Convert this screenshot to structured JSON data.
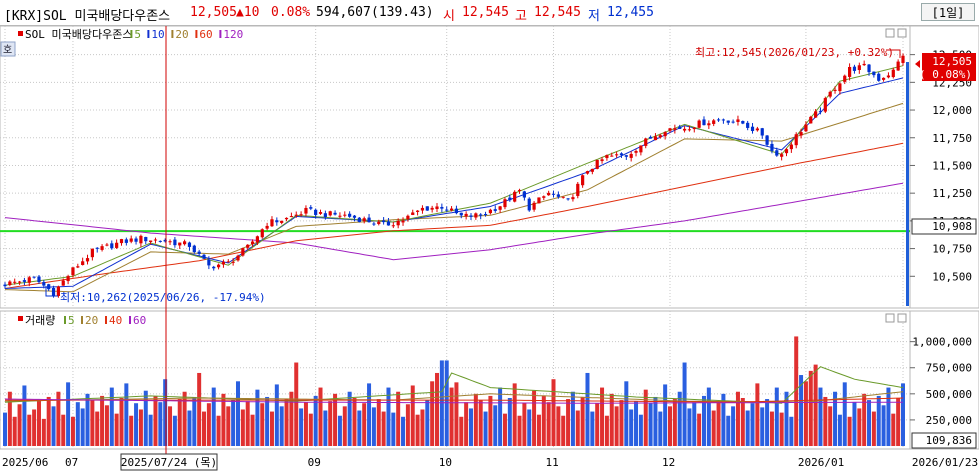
{
  "header": {
    "ticker": "[KRX]SOL 미국배당다우존스",
    "price": "12,505",
    "change": "▲10",
    "change_pct": "0.08%",
    "volume": "594,607",
    "volume_pct": "(139.43)",
    "open_label": "시",
    "open": "12,545",
    "high_label": "고",
    "high": "12,545",
    "low_label": "저",
    "low": "12,455",
    "period": "[1일]",
    "colors": {
      "up": "#e00000",
      "down": "#0030d0"
    }
  },
  "chart_data": [
    {
      "type": "candlestick",
      "title": "SOL 미국배당다우존스",
      "ma_legend": [
        {
          "name": "5",
          "color": "#6a9a2a"
        },
        {
          "name": "10",
          "color": "#1030d0"
        },
        {
          "name": "20",
          "color": "#a08030"
        },
        {
          "name": "60",
          "color": "#e03010"
        },
        {
          "name": "120",
          "color": "#a020c0"
        }
      ],
      "y_ticks": [
        10500,
        10750,
        11000,
        11250,
        11500,
        11750,
        12000,
        12250,
        12500
      ],
      "y_tick_labels": [
        "10,500",
        "10,750",
        "11,000",
        "11,250",
        "11,500",
        "11,750",
        "12,000",
        "12,250",
        "12,500"
      ],
      "ylim": [
        10250,
        12650
      ],
      "current_price_label": "12,505",
      "current_change_label": "( 0.08%)",
      "horizontal_line": {
        "value": 10908,
        "label": "10,908",
        "color": "#22dd22"
      },
      "high_annotation": "최고:12,545(2026/01/23, +0.32%)",
      "low_annotation": "최저:10,262(2025/06/26, -17.94%)",
      "side_marker": "호",
      "close_path": [
        [
          0,
          10430
        ],
        [
          6,
          10480
        ],
        [
          10,
          10350
        ],
        [
          14,
          10560
        ],
        [
          18,
          10720
        ],
        [
          24,
          10810
        ],
        [
          28,
          10840
        ],
        [
          33,
          10820
        ],
        [
          38,
          10780
        ],
        [
          42,
          10590
        ],
        [
          46,
          10620
        ],
        [
          50,
          10760
        ],
        [
          54,
          10980
        ],
        [
          58,
          11020
        ],
        [
          62,
          11090
        ],
        [
          66,
          11060
        ],
        [
          70,
          11050
        ],
        [
          74,
          11010
        ],
        [
          78,
          10960
        ],
        [
          82,
          11010
        ],
        [
          86,
          11110
        ],
        [
          90,
          11130
        ],
        [
          94,
          11040
        ],
        [
          98,
          11050
        ],
        [
          102,
          11140
        ],
        [
          106,
          11270
        ],
        [
          108,
          11120
        ],
        [
          112,
          11250
        ],
        [
          116,
          11170
        ],
        [
          120,
          11460
        ],
        [
          124,
          11580
        ],
        [
          128,
          11590
        ],
        [
          132,
          11720
        ],
        [
          136,
          11830
        ],
        [
          140,
          11840
        ],
        [
          144,
          11890
        ],
        [
          148,
          11920
        ],
        [
          152,
          11880
        ],
        [
          156,
          11780
        ],
        [
          158,
          11630
        ],
        [
          160,
          11600
        ],
        [
          164,
          11820
        ],
        [
          168,
          12010
        ],
        [
          170,
          12150
        ],
        [
          174,
          12370
        ],
        [
          177,
          12390
        ],
        [
          180,
          12280
        ],
        [
          183,
          12350
        ],
        [
          185,
          12505
        ]
      ],
      "ma_series": [
        {
          "name": "120",
          "color": "#a020c0",
          "points": [
            [
              0,
              11030
            ],
            [
              30,
              10890
            ],
            [
              60,
              10800
            ],
            [
              80,
              10650
            ],
            [
              100,
              10740
            ],
            [
              120,
              10880
            ],
            [
              140,
              11000
            ],
            [
              160,
              11150
            ],
            [
              185,
              11340
            ]
          ]
        },
        {
          "name": "60",
          "color": "#e03010",
          "points": [
            [
              0,
              10390
            ],
            [
              20,
              10520
            ],
            [
              40,
              10640
            ],
            [
              60,
              10820
            ],
            [
              80,
              10910
            ],
            [
              100,
              10960
            ],
            [
              120,
              11130
            ],
            [
              140,
              11310
            ],
            [
              160,
              11490
            ],
            [
              185,
              11700
            ]
          ]
        },
        {
          "name": "20",
          "color": "#a08030",
          "points": [
            [
              0,
              10380
            ],
            [
              14,
              10360
            ],
            [
              30,
              10720
            ],
            [
              46,
              10700
            ],
            [
              60,
              10950
            ],
            [
              80,
              11010
            ],
            [
              100,
              11050
            ],
            [
              120,
              11280
            ],
            [
              140,
              11740
            ],
            [
              160,
              11720
            ],
            [
              185,
              12060
            ]
          ]
        },
        {
          "name": "10",
          "color": "#1030d0",
          "points": [
            [
              0,
              10390
            ],
            [
              14,
              10410
            ],
            [
              30,
              10790
            ],
            [
              46,
              10620
            ],
            [
              60,
              11040
            ],
            [
              80,
              10990
            ],
            [
              100,
              11130
            ],
            [
              120,
              11440
            ],
            [
              140,
              11860
            ],
            [
              160,
              11640
            ],
            [
              172,
              12150
            ],
            [
              185,
              12290
            ]
          ]
        },
        {
          "name": "5",
          "color": "#6a9a2a",
          "points": [
            [
              0,
              10420
            ],
            [
              14,
              10500
            ],
            [
              30,
              10800
            ],
            [
              46,
              10600
            ],
            [
              60,
              11050
            ],
            [
              80,
              10990
            ],
            [
              100,
              11160
            ],
            [
              120,
              11520
            ],
            [
              140,
              11870
            ],
            [
              160,
              11600
            ],
            [
              172,
              12260
            ],
            [
              185,
              12400
            ]
          ]
        }
      ]
    },
    {
      "type": "bar",
      "title": "거래량",
      "ma_legend": [
        {
          "name": "5",
          "color": "#6a9a2a"
        },
        {
          "name": "20",
          "color": "#a08030"
        },
        {
          "name": "40",
          "color": "#e03010"
        },
        {
          "name": "60",
          "color": "#a020c0"
        }
      ],
      "y_ticks": [
        250000,
        500000,
        750000,
        1000000
      ],
      "y_tick_labels": [
        "250,000",
        "500,000",
        "750,000",
        "1,000,000"
      ],
      "ylim": [
        0,
        1150000
      ],
      "current_volume_label": "109,836",
      "volume_pattern": [
        320,
        520,
        280,
        400,
        580,
        300,
        350,
        440,
        260,
        470,
        380,
        520,
        300,
        610,
        280,
        420,
        360,
        500,
        440,
        330,
        480,
        390,
        560,
        310,
        460,
        600,
        290,
        410,
        350,
        530,
        300,
        480,
        420,
        640,
        380,
        290,
        450,
        520,
        340,
        470,
        700,
        330,
        410,
        560,
        290,
        500,
        380,
        440,
        620,
        350,
        430,
        300,
        540,
        410,
        470,
        330,
        590,
        380,
        450,
        520,
        800,
        360,
        420,
        310,
        480,
        560,
        340,
        430,
        500,
        290,
        380,
        520,
        460,
        340,
        410,
        600,
        370,
        450,
        330,
        560
      ],
      "ma_series": [
        {
          "name": "5",
          "color": "#6a9a2a",
          "points": [
            [
              0,
              420
            ],
            [
              30,
              480
            ],
            [
              60,
              430
            ],
            [
              90,
              520
            ],
            [
              92,
              700
            ],
            [
              100,
              560
            ],
            [
              130,
              470
            ],
            [
              160,
              410
            ],
            [
              168,
              760
            ],
            [
              175,
              640
            ],
            [
              185,
              560
            ]
          ]
        },
        {
          "name": "20",
          "color": "#a08030",
          "points": [
            [
              0,
              430
            ],
            [
              40,
              460
            ],
            [
              80,
              440
            ],
            [
              100,
              500
            ],
            [
              140,
              430
            ],
            [
              165,
              420
            ],
            [
              185,
              520
            ]
          ]
        },
        {
          "name": "40",
          "color": "#e03010",
          "points": [
            [
              0,
              440
            ],
            [
              50,
              440
            ],
            [
              100,
              440
            ],
            [
              150,
              420
            ],
            [
              185,
              460
            ]
          ]
        },
        {
          "name": "60",
          "color": "#a020c0",
          "points": [
            [
              0,
              450
            ],
            [
              60,
              420
            ],
            [
              120,
              410
            ],
            [
              185,
              420
            ]
          ]
        }
      ]
    }
  ],
  "x_axis": {
    "labels": [
      {
        "i": 0,
        "text": "2025/06"
      },
      {
        "i": 14,
        "text": "07"
      },
      {
        "i": 64,
        "text": "09"
      },
      {
        "i": 91,
        "text": "10"
      },
      {
        "i": 113,
        "text": "11"
      },
      {
        "i": 137,
        "text": "12"
      },
      {
        "i": 165,
        "text": "2026/01"
      },
      {
        "i": 185,
        "text": "2026/01/23"
      }
    ],
    "crosshair_label": "2025/07/24 (목)"
  }
}
